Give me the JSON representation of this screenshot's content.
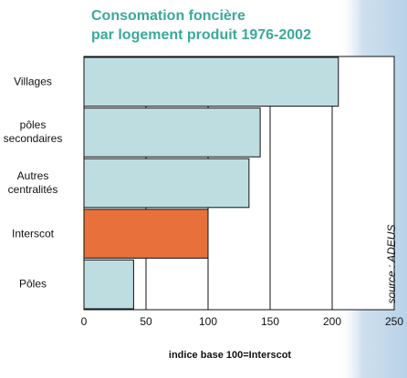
{
  "chart_data": {
    "type": "barh",
    "title": "Consomation foncière\npar logement produit 1976-2002",
    "categories": [
      "Villages",
      "pôles\nsecondaires",
      "Autres\ncentralités",
      "Interscot",
      "Pôles"
    ],
    "values": [
      205,
      142,
      133,
      100,
      40
    ],
    "colors": [
      "#bddde1",
      "#bddde1",
      "#bddde1",
      "#e8703a",
      "#bddde1"
    ],
    "xlabel": "indice base 100=Interscot",
    "source": "source : ADEUS",
    "xlim": [
      0,
      250
    ],
    "xticks": [
      0,
      50,
      100,
      150,
      200,
      250
    ],
    "grid": true
  }
}
